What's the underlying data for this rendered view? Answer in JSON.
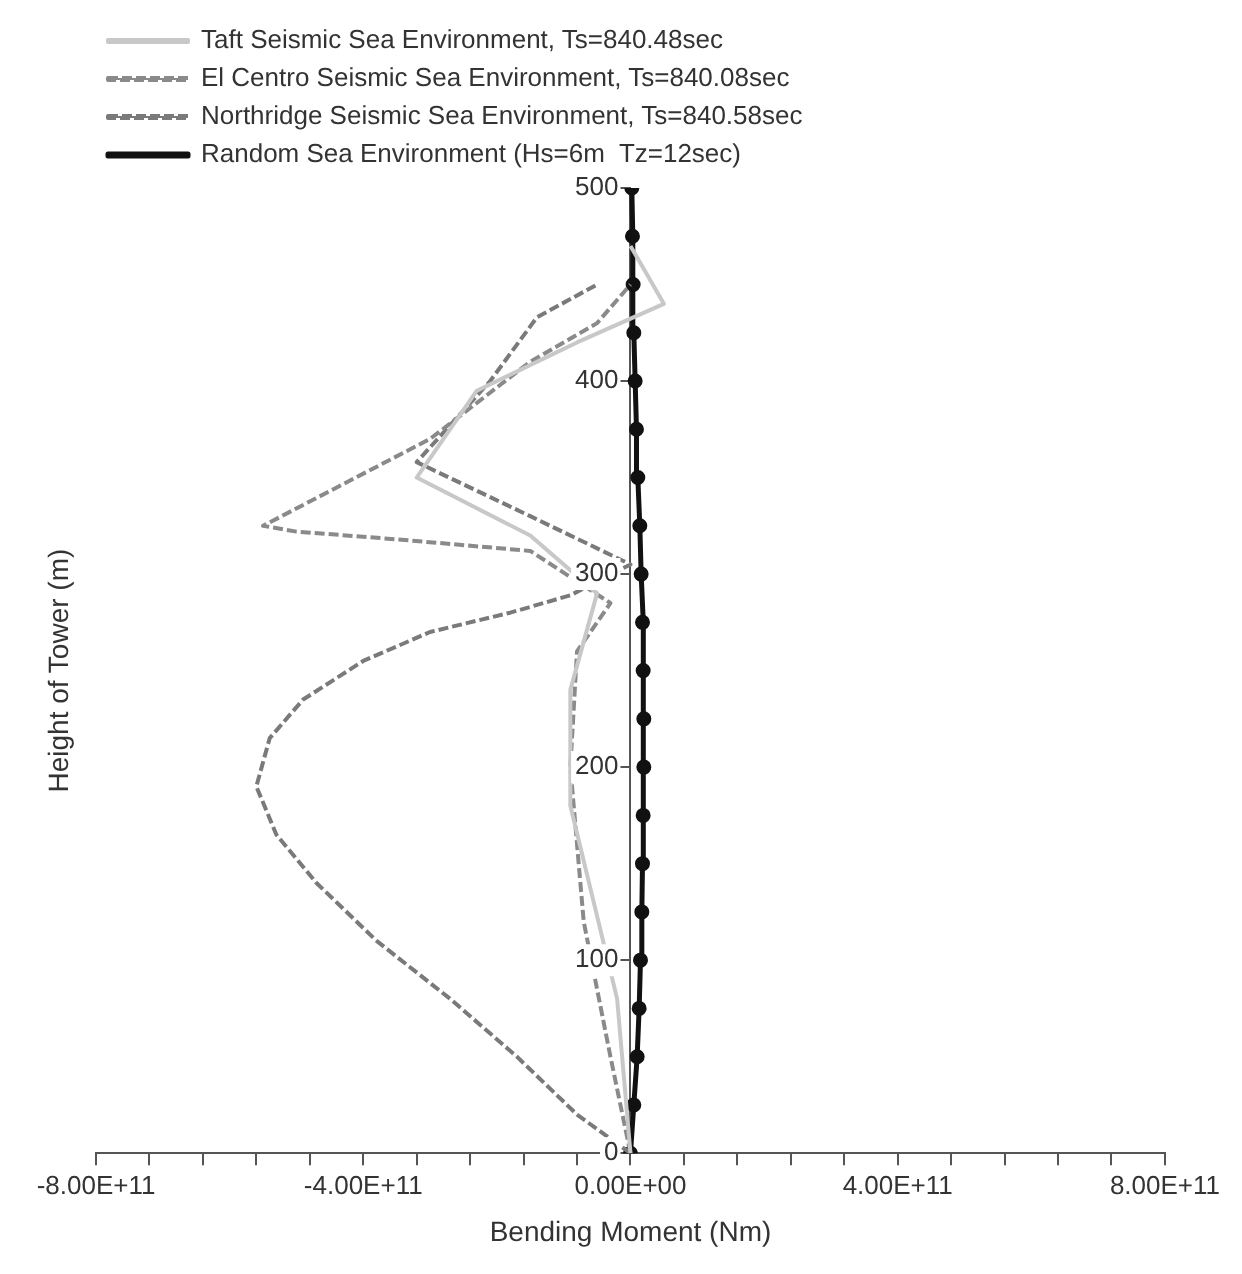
{
  "chart_data": {
    "type": "line",
    "xlabel": "Bending Moment (Nm)",
    "ylabel": "Height of Tower (m)",
    "xlim": [
      -800000000000.0,
      800000000000.0
    ],
    "ylim": [
      0,
      500
    ],
    "xticks": [
      {
        "value": -800000000000.0,
        "label": "-8.00E+11"
      },
      {
        "value": -720000000000.0,
        "label": null
      },
      {
        "value": -640000000000.0,
        "label": null
      },
      {
        "value": -560000000000.0,
        "label": null
      },
      {
        "value": -480000000000.0,
        "label": null
      },
      {
        "value": -400000000000.0,
        "label": "-4.00E+11"
      },
      {
        "value": -320000000000.0,
        "label": null
      },
      {
        "value": -240000000000.0,
        "label": null
      },
      {
        "value": -160000000000.0,
        "label": null
      },
      {
        "value": -80000000000.0,
        "label": null
      },
      {
        "value": 0,
        "label": "0.00E+00"
      },
      {
        "value": 80000000000.0,
        "label": null
      },
      {
        "value": 160000000000.0,
        "label": null
      },
      {
        "value": 240000000000.0,
        "label": null
      },
      {
        "value": 320000000000.0,
        "label": null
      },
      {
        "value": 400000000000.0,
        "label": "4.00E+11"
      },
      {
        "value": 480000000000.0,
        "label": null
      },
      {
        "value": 560000000000.0,
        "label": null
      },
      {
        "value": 640000000000.0,
        "label": null
      },
      {
        "value": 720000000000.0,
        "label": null
      },
      {
        "value": 800000000000.0,
        "label": "8.00E+11"
      }
    ],
    "yticks": [
      0,
      100,
      200,
      300,
      400,
      500
    ],
    "grid": false,
    "legend": "top",
    "series": [
      {
        "name": "Taft Seismic Sea Environment, Ts=840.48sec",
        "color": "#c8c8c8",
        "line_style": "solid",
        "marker": "none",
        "x": [
          0,
          -20000000000.0,
          -90000000000.0,
          -90000000000.0,
          -50000000000.0,
          -150000000000.0,
          -320000000000.0,
          -230000000000.0,
          -80000000000.0,
          50000000000.0,
          0
        ],
        "values": [
          0,
          80,
          180,
          240,
          290,
          320,
          350,
          395,
          420,
          440,
          470
        ]
      },
      {
        "name": "El Centro Seismic Sea Environment, Ts=840.08sec",
        "color": "#8a8a8a",
        "line_style": "dashed",
        "marker": "none",
        "x": [
          0,
          -30000000000.0,
          -70000000000.0,
          -90000000000.0,
          -80000000000.0,
          -30000000000.0,
          -150000000000.0,
          -350000000000.0,
          -500000000000.0,
          -550000000000.0,
          -300000000000.0,
          -150000000000.0,
          -50000000000.0,
          0
        ],
        "values": [
          0,
          50,
          120,
          200,
          260,
          285,
          312,
          318,
          322,
          325,
          370,
          410,
          430,
          450
        ]
      },
      {
        "name": "Northridge Seismic Sea Environment, Ts=840.58sec",
        "color": "#7a7a7a",
        "line_style": "dashed",
        "marker": "none",
        "x": [
          0,
          -80000000000.0,
          -170000000000.0,
          -270000000000.0,
          -380000000000.0,
          -470000000000.0,
          -530000000000.0,
          -560000000000.0,
          -540000000000.0,
          -490000000000.0,
          -400000000000.0,
          -300000000000.0,
          -180000000000.0,
          -90000000000.0,
          0,
          -150000000000.0,
          -320000000000.0,
          -210000000000.0,
          -140000000000.0,
          -50000000000.0
        ],
        "values": [
          0,
          20,
          50,
          80,
          110,
          140,
          165,
          190,
          215,
          235,
          255,
          270,
          280,
          289,
          305,
          330,
          358,
          400,
          433,
          450
        ]
      },
      {
        "name": "Random Sea Environment (Hs=6m  Tz=12sec)",
        "color": "#111111",
        "line_style": "solid",
        "marker": "circle",
        "x": [
          0,
          5000000000.0,
          10000000000.0,
          13000000000.0,
          15000000000.0,
          17000000000.0,
          18000000000.0,
          19000000000.0,
          20000000000.0,
          20000000000.0,
          19000000000.0,
          18000000000.0,
          16000000000.0,
          14000000000.0,
          11000000000.0,
          9000000000.0,
          7000000000.0,
          5000000000.0,
          4000000000.0,
          3000000000.0,
          2000000000.0
        ],
        "values": [
          0,
          25,
          50,
          75,
          100,
          125,
          150,
          175,
          200,
          225,
          250,
          275,
          300,
          325,
          350,
          375,
          400,
          425,
          450,
          475,
          500
        ]
      }
    ]
  }
}
